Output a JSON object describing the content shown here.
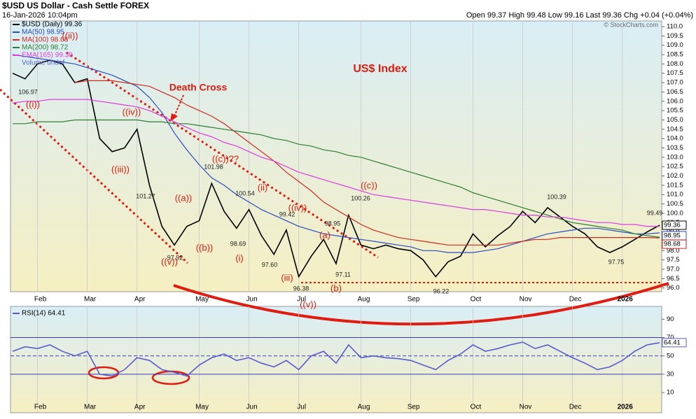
{
  "header": {
    "symbol": "$USD US Dollar - Cash Settle FOREX",
    "date": "16-Jan-2026 10:04pm",
    "quote": "Open 99.37 High 99.48 Low 99.16 Last 99.36 Chg +0.04 (+0.04%)",
    "credit": "© StockCharts.com"
  },
  "chart_data": [
    {
      "type": "line",
      "title": "US$ Index",
      "categories": [
        null,
        null,
        "Feb",
        null,
        null,
        null,
        "Mar",
        null,
        null,
        null,
        "Apr",
        null,
        null,
        null,
        null,
        "May",
        null,
        null,
        null,
        "Jun",
        null,
        null,
        null,
        "Jul",
        null,
        null,
        null,
        null,
        "Aug",
        null,
        null,
        null,
        "Sep",
        null,
        null,
        null,
        null,
        "Oct",
        null,
        null,
        null,
        "Nov",
        null,
        null,
        null,
        "Dec",
        null,
        null,
        null,
        "2026",
        null,
        null,
        null
      ],
      "series": [
        {
          "name": "$USD (Daily) 99.36",
          "color": "#000000",
          "end_label": "99.36",
          "values": [
            107.5,
            107.2,
            108.0,
            108.2,
            108.0,
            107.0,
            107.2,
            104.0,
            103.3,
            103.5,
            104.5,
            101.5,
            99.3,
            98.3,
            99.3,
            99.6,
            101.6,
            100.1,
            99.2,
            100.2,
            98.8,
            97.8,
            99.1,
            96.6,
            97.7,
            98.6,
            97.3,
            99.9,
            98.3,
            98.1,
            98.3,
            98.1,
            98.0,
            97.5,
            96.6,
            97.4,
            97.7,
            98.9,
            98.2,
            98.8,
            99.3,
            100.1,
            99.5,
            100.3,
            99.8,
            99.3,
            98.9,
            98.2,
            97.9,
            98.2,
            98.6,
            99.0,
            99.36
          ]
        },
        {
          "name": "MA(50) 98.95",
          "color": "#2c4cc0",
          "end_label": "98.95",
          "values": [
            108.5,
            108.4,
            108.3,
            108.2,
            108.1,
            108.0,
            107.8,
            107.6,
            107.4,
            107.1,
            106.8,
            106.2,
            105.4,
            104.3,
            103.4,
            102.6,
            101.9,
            101.5,
            101.0,
            100.6,
            100.2,
            99.9,
            99.6,
            99.3,
            99.1,
            98.9,
            98.8,
            98.7,
            98.6,
            98.5,
            98.4,
            98.3,
            98.2,
            98.0,
            98.0,
            97.9,
            97.9,
            97.9,
            98.0,
            98.1,
            98.3,
            98.5,
            98.7,
            98.9,
            99.0,
            99.1,
            99.2,
            99.2,
            99.1,
            99.0,
            98.9,
            98.9,
            98.95
          ]
        },
        {
          "name": "MA(100) 98.68",
          "color": "#d02a1e",
          "end_label": "98.68",
          "values": [
            null,
            null,
            null,
            null,
            null,
            107.0,
            107.1,
            107.1,
            107.1,
            107.0,
            106.9,
            106.8,
            106.5,
            106.2,
            105.8,
            105.5,
            105.2,
            104.8,
            104.3,
            103.8,
            103.3,
            102.8,
            102.2,
            101.7,
            101.2,
            100.6,
            100.2,
            99.8,
            99.4,
            99.1,
            98.9,
            98.7,
            98.6,
            98.5,
            98.4,
            98.3,
            98.3,
            98.3,
            98.3,
            98.3,
            98.4,
            98.5,
            98.6,
            98.6,
            98.7,
            98.7,
            98.7,
            98.7,
            98.7,
            98.7,
            98.7,
            98.7,
            98.68
          ]
        },
        {
          "name": "MA(200) 98.72",
          "color": "#2e7d32",
          "values": [
            104.8,
            104.8,
            104.9,
            104.9,
            104.9,
            105.0,
            105.0,
            105.0,
            105.0,
            105.0,
            105.0,
            104.9,
            104.9,
            104.8,
            104.8,
            104.7,
            104.6,
            104.5,
            104.4,
            104.3,
            104.2,
            104.0,
            103.9,
            103.7,
            103.6,
            103.4,
            103.3,
            103.1,
            103.0,
            102.8,
            102.6,
            102.4,
            102.2,
            102.0,
            101.8,
            101.6,
            101.4,
            101.1,
            100.9,
            100.7,
            100.5,
            100.3,
            100.1,
            99.9,
            99.7,
            99.5,
            99.4,
            99.3,
            99.2,
            99.1,
            98.9,
            98.8,
            98.72
          ]
        },
        {
          "name": "EMA(165) 99.30",
          "color": "#e03ce0",
          "values": [
            105.9,
            106.0,
            106.0,
            106.1,
            106.1,
            106.1,
            106.1,
            106.0,
            105.9,
            105.8,
            105.7,
            105.5,
            105.2,
            104.9,
            104.6,
            104.3,
            104.1,
            103.8,
            103.6,
            103.3,
            103.0,
            102.8,
            102.5,
            102.2,
            102.0,
            101.8,
            101.6,
            101.4,
            101.2,
            101.0,
            100.9,
            100.8,
            100.7,
            100.6,
            100.5,
            100.4,
            100.3,
            100.2,
            100.2,
            100.1,
            100.0,
            99.9,
            99.9,
            99.8,
            99.8,
            99.7,
            99.6,
            99.5,
            99.5,
            99.4,
            99.4,
            99.3,
            99.3
          ]
        }
      ],
      "volume_label": "Volume undef",
      "ylim": [
        95.8,
        110.3
      ],
      "yticks": [
        {
          "value": 96,
          "label": "96.0"
        },
        96.5,
        {
          "value": 97,
          "label": "97.0"
        },
        97.5,
        {
          "value": 98,
          "label": "98.0"
        },
        98.5,
        {
          "value": 99,
          "label": "99.0"
        },
        99.5,
        {
          "value": 100,
          "label": "100.0"
        },
        100.5,
        {
          "value": 101,
          "label": "101.0"
        },
        101.5,
        {
          "value": 102,
          "label": "102.0"
        },
        102.5,
        {
          "value": 103,
          "label": "103.0"
        },
        103.5,
        {
          "value": 104,
          "label": "104.0"
        },
        104.5,
        {
          "value": 105,
          "label": "105.0"
        },
        105.5,
        {
          "value": 106,
          "label": "106.0"
        },
        106.5,
        {
          "value": 107,
          "label": "107.0"
        },
        107.5,
        {
          "value": 108,
          "label": "108.0"
        },
        108.5,
        {
          "value": 109,
          "label": "109.0"
        },
        109.5,
        {
          "value": 110,
          "label": "110.0"
        }
      ],
      "wave_labels": [
        "Death Cross",
        "((i))",
        "((ii))",
        "((iii))",
        "((iv))",
        "((v))",
        "((a))",
        "((b))",
        "((c))??",
        "(i)",
        "(ii)",
        "(iii)",
        "((iv))",
        "(a)",
        "(b)",
        "((v))",
        "((c))"
      ],
      "price_labels": [
        "106.97",
        "101.27",
        "97.92",
        "101.98",
        "100.54",
        "98.69",
        "97.60",
        "99.42",
        "96.38",
        "98.95",
        "97.11",
        "100.26",
        "96.22",
        "100.39",
        "97.75",
        "99.49"
      ]
    },
    {
      "type": "line",
      "categories": [
        null,
        null,
        "Feb",
        null,
        null,
        null,
        "Mar",
        null,
        null,
        null,
        "Apr",
        null,
        null,
        null,
        null,
        "May",
        null,
        null,
        null,
        "Jun",
        null,
        null,
        null,
        "Jul",
        null,
        null,
        null,
        null,
        "Aug",
        null,
        null,
        null,
        "Sep",
        null,
        null,
        null,
        null,
        "Oct",
        null,
        null,
        null,
        "Nov",
        null,
        null,
        null,
        "Dec",
        null,
        null,
        null,
        "2026",
        null,
        null,
        null
      ],
      "series": [
        {
          "name": "RSI(14) 64.41",
          "color": "#5a5ad0",
          "end_label": "64.41",
          "values": [
            55,
            60,
            58,
            62,
            55,
            50,
            55,
            30,
            28,
            35,
            48,
            45,
            35,
            32,
            28,
            40,
            48,
            52,
            45,
            48,
            42,
            38,
            45,
            35,
            50,
            55,
            42,
            62,
            48,
            50,
            48,
            47,
            45,
            40,
            35,
            45,
            52,
            62,
            55,
            58,
            62,
            65,
            58,
            62,
            55,
            48,
            42,
            35,
            38,
            45,
            55,
            62,
            64.41
          ]
        }
      ],
      "ylim": [
        -12,
        104
      ],
      "yticks": [
        10,
        30,
        50,
        70,
        90
      ],
      "ref_lines": [
        30,
        50,
        70
      ]
    }
  ]
}
